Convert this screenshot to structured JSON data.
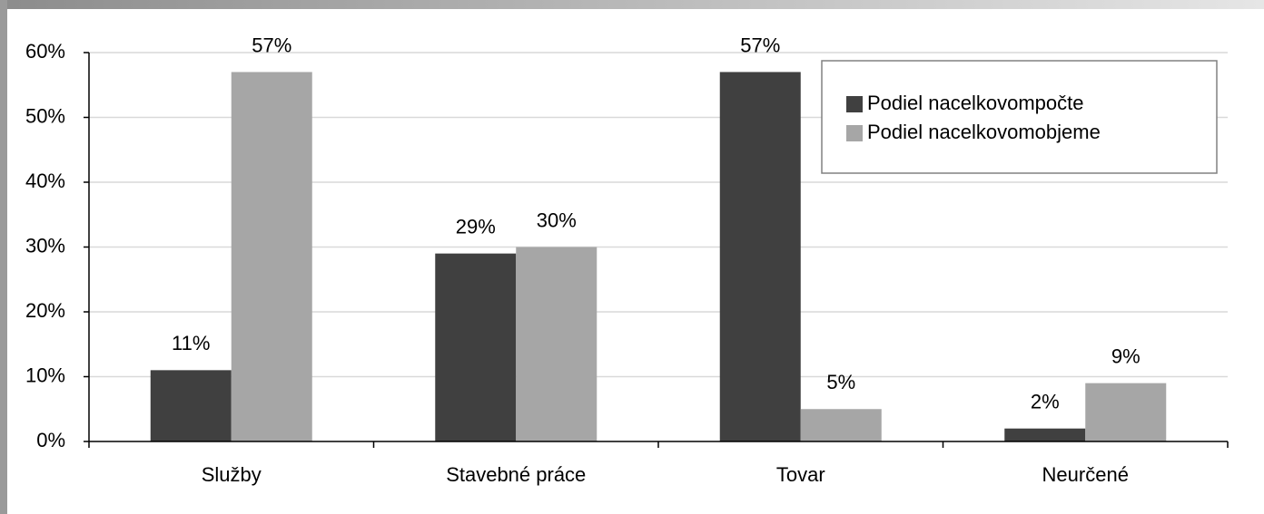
{
  "chart_data": {
    "type": "bar",
    "categories": [
      "Služby",
      "Stavebné práce",
      "Tovar",
      "Neurčené"
    ],
    "series": [
      {
        "name": "Podiel nacelkovompočte",
        "color": "#404040",
        "values": [
          11,
          29,
          57,
          2
        ],
        "value_labels": [
          "11%",
          "29%",
          "57%",
          "2%"
        ]
      },
      {
        "name": "Podiel nacelkovomobjeme",
        "color": "#a6a6a6",
        "values": [
          57,
          30,
          5,
          9
        ],
        "value_labels": [
          "57%",
          "30%",
          "5%",
          "9%"
        ]
      }
    ],
    "ylim": [
      0,
      60
    ],
    "yticks": [
      {
        "value": 0,
        "label": "0%"
      },
      {
        "value": 10,
        "label": "10%"
      },
      {
        "value": 20,
        "label": "20%"
      },
      {
        "value": 30,
        "label": "30%"
      },
      {
        "value": 40,
        "label": "40%"
      },
      {
        "value": 50,
        "label": "50%"
      },
      {
        "value": 60,
        "label": "60%"
      }
    ],
    "grid": true,
    "legend": "upper right"
  }
}
